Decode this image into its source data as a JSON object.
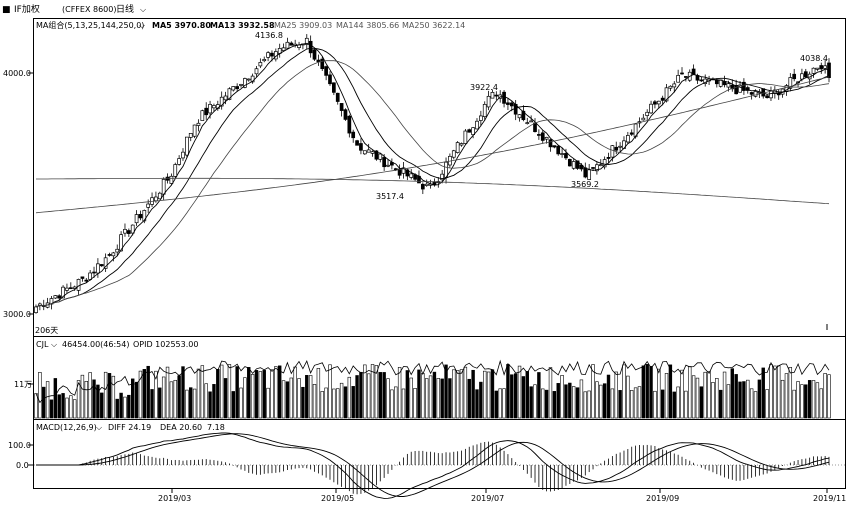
{
  "header": {
    "instrument": "IF加权",
    "code": "(CFFEX 8600)",
    "period": "日线"
  },
  "top_left_symbol": "■",
  "price_panel": {
    "ma_label": "MA组合(5,13,25,144,250,0)",
    "ma_values": [
      {
        "text": "MA5 3970.80",
        "color": "#000000"
      },
      {
        "text": "MA13 3932.58",
        "color": "#000000"
      },
      {
        "text": "MA25 3909.03",
        "color": "#555555"
      },
      {
        "text": "MA144 3805.66",
        "color": "#555555"
      },
      {
        "text": "MA250 3622.14",
        "color": "#555555"
      }
    ],
    "yticks": [
      "4000.0",
      "3000.0"
    ],
    "days_label": "206天",
    "annotations": [
      "4136.8",
      "3922.4",
      "3517.4",
      "3569.2",
      "4038.4"
    ]
  },
  "volume_panel": {
    "label": "CJL",
    "values": "46454.00(46:54)",
    "opid": "OPID 102553.00",
    "ytick": "11万"
  },
  "macd_panel": {
    "label": "MACD(12,26,9)",
    "diff": "DIFF 24.19",
    "dea": "DEA 20.60",
    "macd": "7.18",
    "yticks": [
      "100.0",
      "0.0"
    ]
  },
  "x_axis": {
    "ticks": [
      "2019/03",
      "2019/05",
      "2019/07",
      "2019/09",
      "2019/11"
    ]
  },
  "chart_data": {
    "type": "candlestick",
    "title": "",
    "price_ylim": [
      3000,
      4200
    ],
    "ohlc_keypoints": [
      {
        "date": "2019-01-04",
        "close": 3030
      },
      {
        "date": "2019-01-22",
        "close": 3140
      },
      {
        "date": "2019-02-01",
        "close": 3240
      },
      {
        "date": "2019-02-25",
        "close": 3570
      },
      {
        "date": "2019-03-07",
        "close": 3800
      },
      {
        "date": "2019-04-08",
        "close": 4100
      },
      {
        "date": "2019-04-19",
        "close": 4136.8
      },
      {
        "date": "2019-05-09",
        "close": 3700
      },
      {
        "date": "2019-06-06",
        "close": 3517.4
      },
      {
        "date": "2019-06-28",
        "close": 3880
      },
      {
        "date": "2019-07-02",
        "close": 3922.4
      },
      {
        "date": "2019-08-06",
        "close": 3569.2
      },
      {
        "date": "2019-09-12",
        "close": 3990
      },
      {
        "date": "2019-10-15",
        "close": 3900
      },
      {
        "date": "2019-11-05",
        "close": 4038.4
      },
      {
        "date": "2019-11-08",
        "close": 3980
      }
    ],
    "moving_averages": [
      "MA5",
      "MA13",
      "MA25",
      "MA144",
      "MA250"
    ],
    "volume_ytick": "11万",
    "macd": {
      "diff": 24.19,
      "dea": 20.6,
      "macd": 7.18
    },
    "xticks": [
      "2019/03",
      "2019/05",
      "2019/07",
      "2019/09",
      "2019/11"
    ]
  }
}
